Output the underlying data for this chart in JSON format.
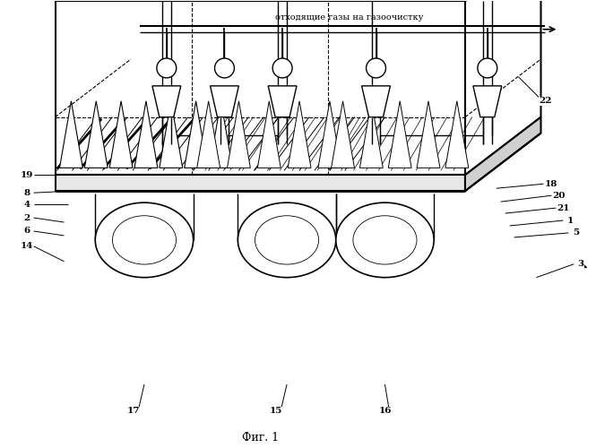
{
  "title": "Фиг. 1",
  "top_label": "отходящие газы на газоочистку",
  "bg_color": "#ffffff",
  "line_color": "#000000",
  "fig_width": 6.65,
  "fig_height": 5.0,
  "dpi": 100
}
